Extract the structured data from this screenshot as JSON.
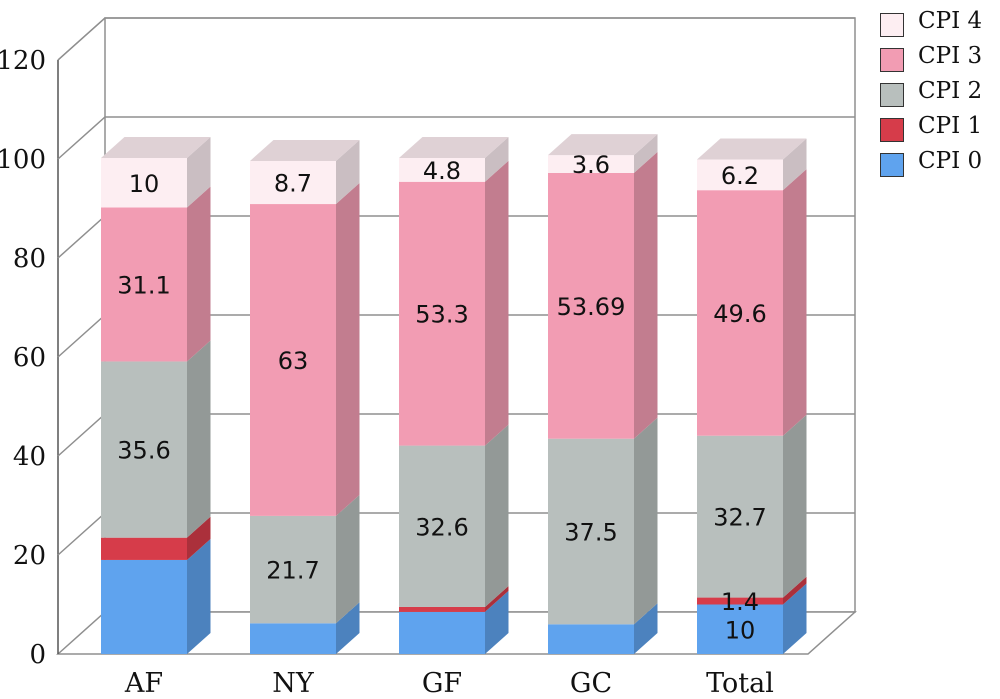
{
  "chart_data": {
    "type": "bar",
    "stacked": true,
    "three_d": true,
    "categories": [
      "AF",
      "NY",
      "GF",
      "GC",
      "Total"
    ],
    "ylim": [
      0,
      120
    ],
    "yticks": [
      0,
      20,
      40,
      60,
      80,
      100,
      120
    ],
    "grid": true,
    "legend_position": "top-right",
    "series": [
      {
        "name": "CPI 0",
        "color": "#5fa3ee",
        "values": [
          19,
          6.2,
          8.5,
          6.0,
          10
        ],
        "labels": [
          "",
          "",
          "",
          "",
          "10"
        ]
      },
      {
        "name": "CPI 1",
        "color": "#d63c4a",
        "values": [
          4.5,
          0,
          1.0,
          0,
          1.4
        ],
        "labels": [
          "",
          "",
          "",
          "",
          "1.4"
        ]
      },
      {
        "name": "CPI 2",
        "color": "#b8bfbd",
        "values": [
          35.6,
          21.7,
          32.6,
          37.5,
          32.7
        ],
        "labels": [
          "35.6",
          "21.7",
          "32.6",
          "37.5",
          "32.7"
        ]
      },
      {
        "name": "CPI 3",
        "color": "#f29cb3",
        "values": [
          31.1,
          63,
          53.3,
          53.69,
          49.6
        ],
        "labels": [
          "31.1",
          "63",
          "53.3",
          "53.69",
          "49.6"
        ]
      },
      {
        "name": "CPI 4",
        "color": "#fdeef2",
        "values": [
          10,
          8.7,
          4.8,
          3.6,
          6.2
        ],
        "labels": [
          "10",
          "8.7",
          "4.8",
          "3.6",
          "6.2"
        ]
      }
    ],
    "legend_order": [
      "CPI 4",
      "CPI 3",
      "CPI 2",
      "CPI 1",
      "CPI 0"
    ]
  }
}
